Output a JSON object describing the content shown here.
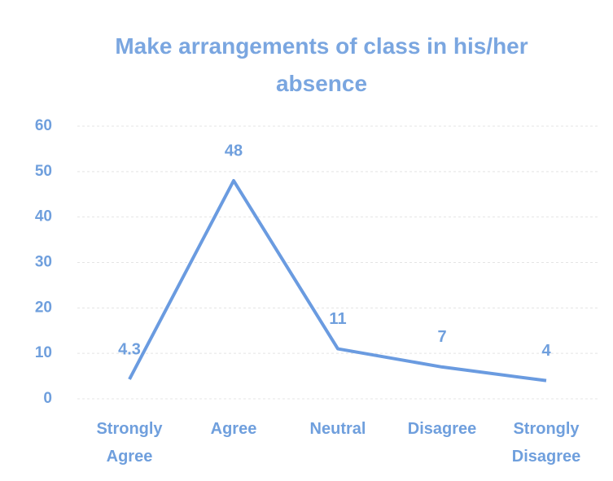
{
  "chart_data": {
    "type": "line",
    "title": "Make arrangements of class in his/her absence",
    "categories": [
      "Strongly Agree",
      "Agree",
      "Neutral",
      "Disagree",
      "Strongly Disagree"
    ],
    "values": [
      4.3,
      48,
      11,
      7,
      4
    ],
    "color": "#6a9be0",
    "ylim": [
      0,
      60
    ],
    "yticks": [
      0,
      10,
      20,
      30,
      40,
      50,
      60
    ],
    "grid": true,
    "data_labels": true
  }
}
